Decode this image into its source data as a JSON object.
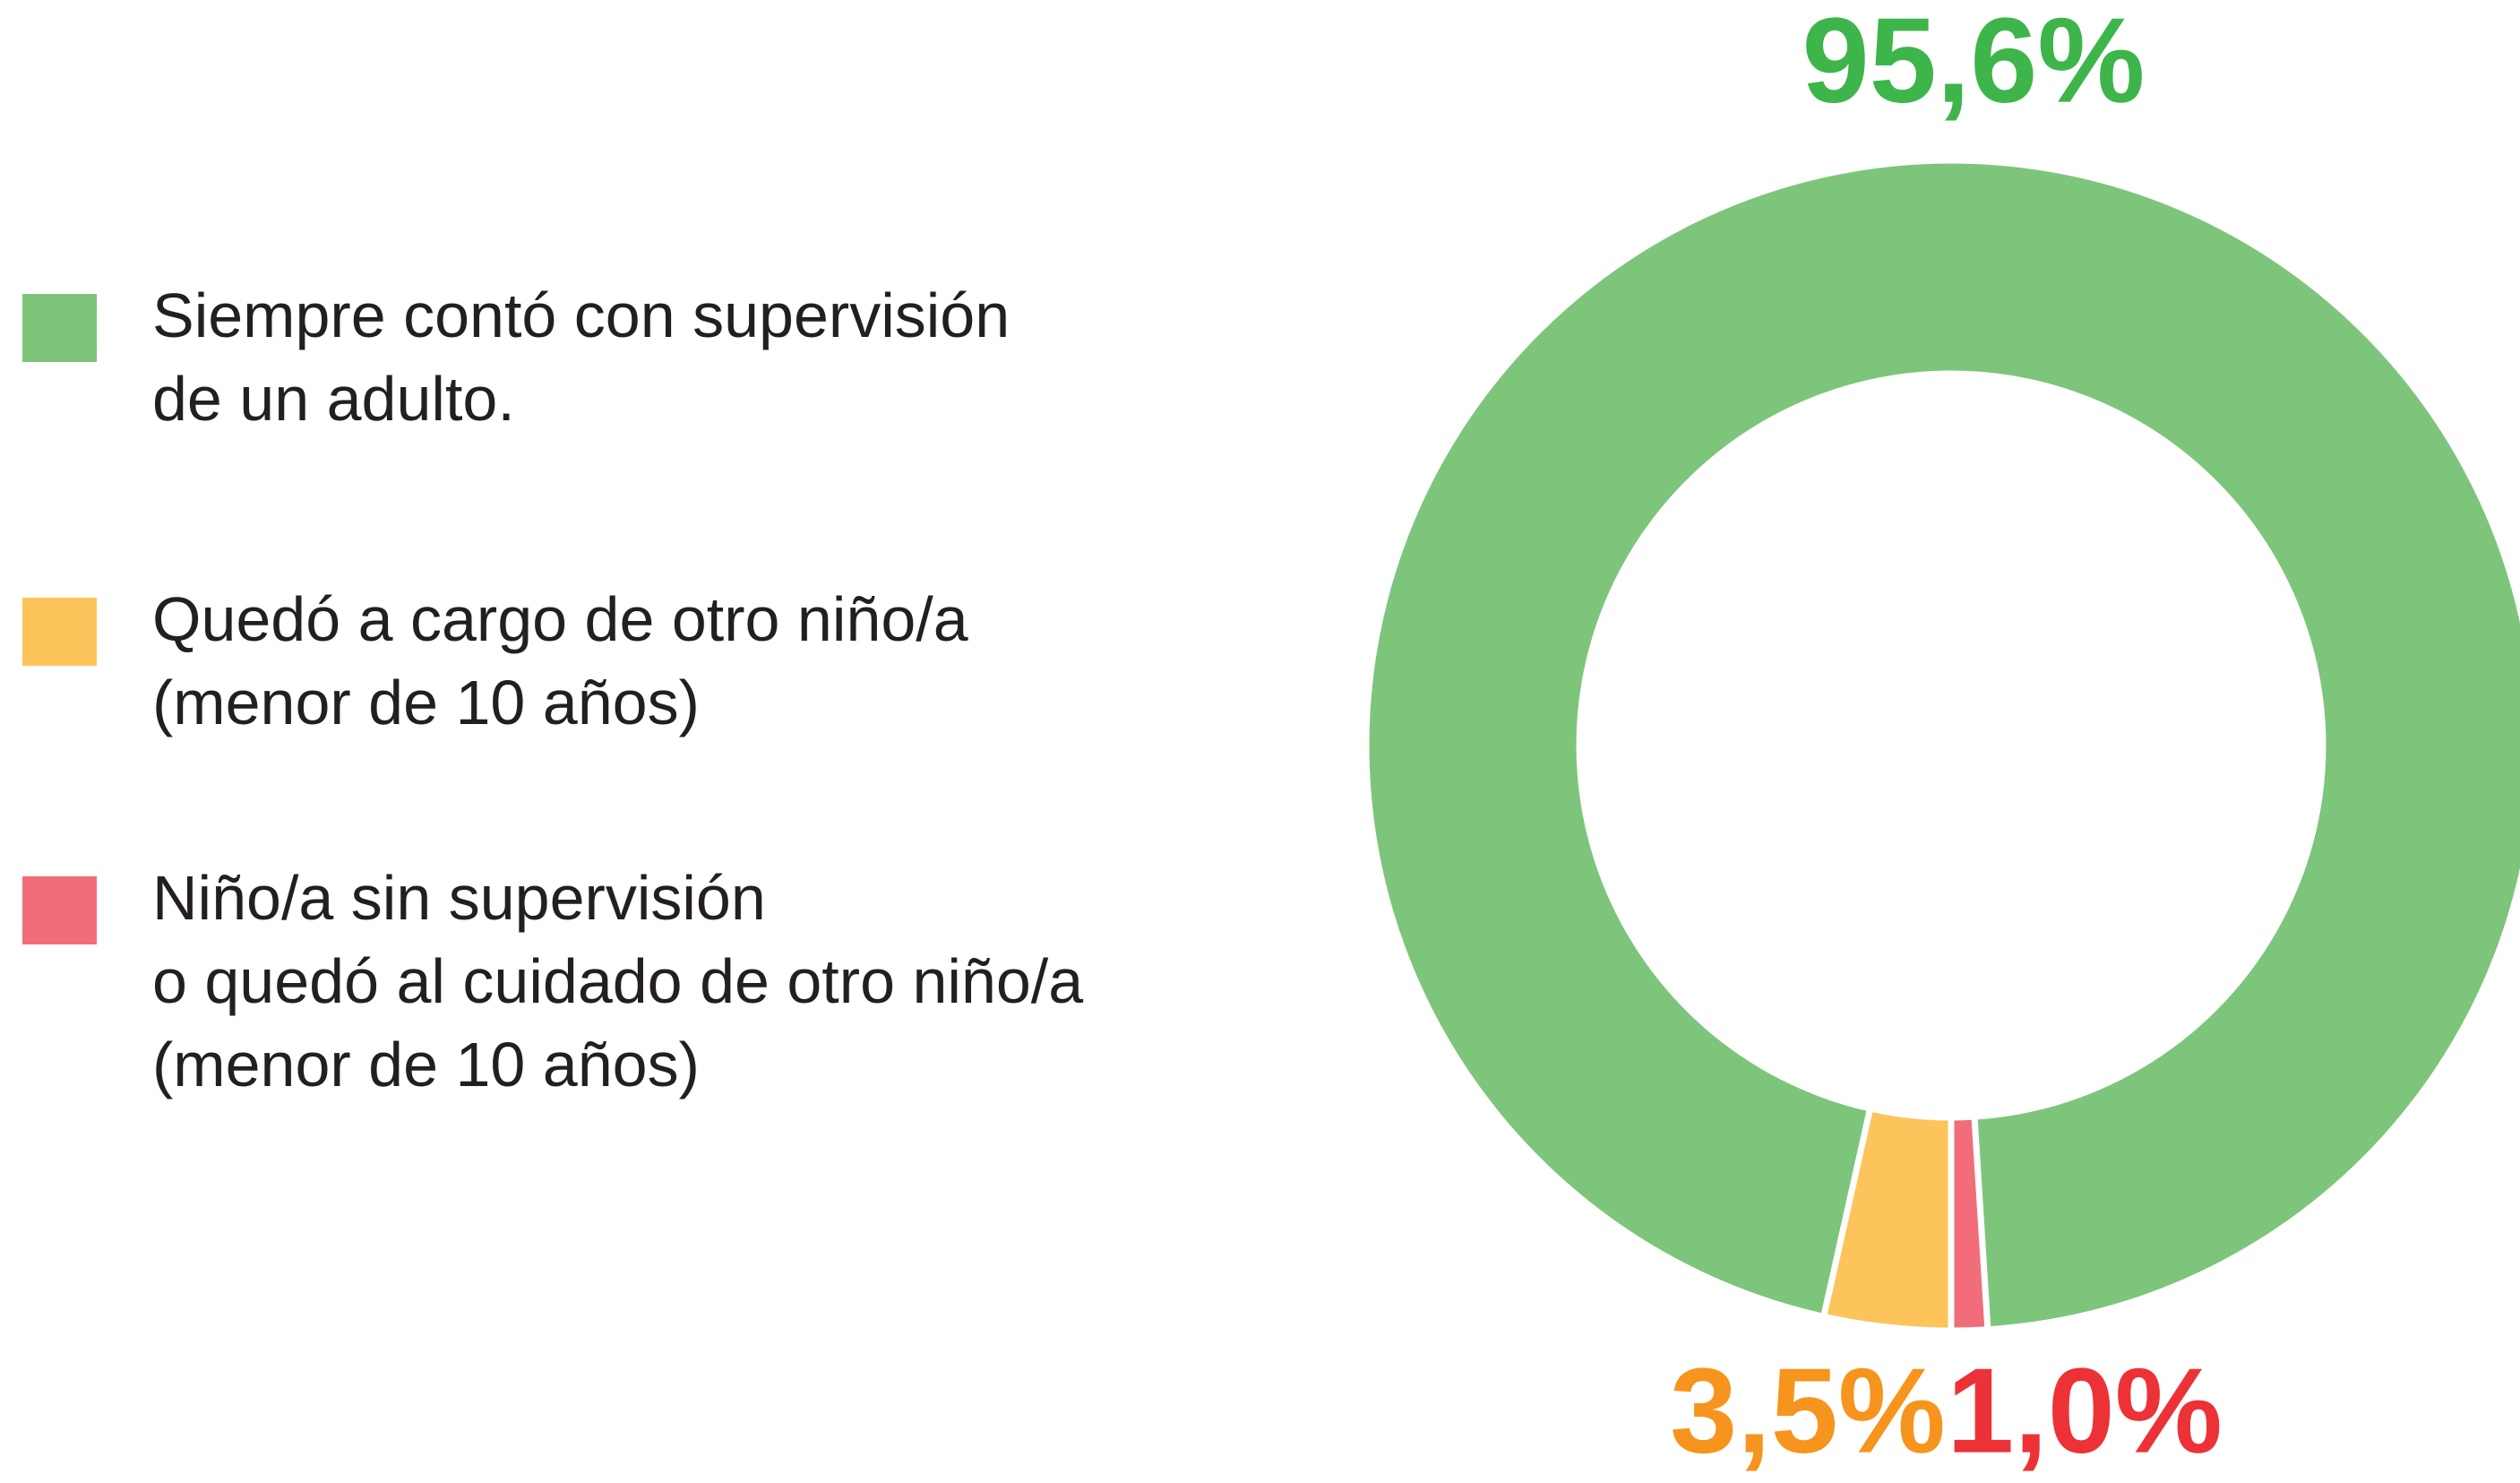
{
  "chart_data": {
    "type": "donut",
    "series": [
      {
        "name": "Siempre contó con supervisión\nde un adulto.",
        "color": "#7dc57b",
        "label_color": "#3db54a",
        "value": 95.6,
        "value_label": "95,6%"
      },
      {
        "name": "Quedó a cargo de otro niño/a\n(menor de 10 años)",
        "color": "#fdc45c",
        "label_color": "#f7941d",
        "value": 3.5,
        "value_label": "3,5%"
      },
      {
        "name": "Niño/a sin supervisión\no quedó al cuidado de otro niño/a\n(menor de 10 años)",
        "color": "#f16d7a",
        "label_color": "#ec3237",
        "value": 1.0,
        "value_label": "1,0%"
      }
    ]
  }
}
